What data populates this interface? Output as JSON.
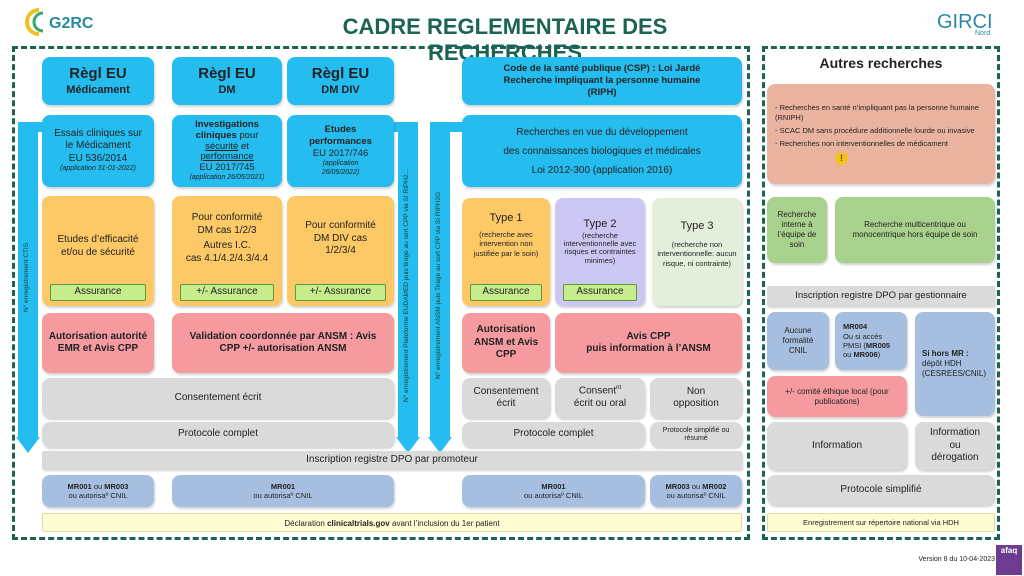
{
  "title": "CADRE REGLEMENTAIRE DES RECHERCHES",
  "logos": {
    "left": "G2RC",
    "right": "GIRCI Nord Ouest",
    "bottom": "afaq"
  },
  "arrows": {
    "ctis": "N° enregistrement CTIS",
    "eudamed": "N° enregistrement Plateforme EUDAMED puis tirage au sort CPP via SI RIPH2…",
    "ansm": "N° enregistrement ANSM puis Tirage au sort CPP via SI RIPH2G"
  },
  "headers": [
    {
      "title": "Règl EU",
      "sub": "Médicament"
    },
    {
      "title": "Règl EU",
      "sub": "DM"
    },
    {
      "title": "Règl EU",
      "sub": "DM DIV"
    },
    {
      "line1": "Code de la santé publique (CSP) : Loi Jardé",
      "line2": "Recherche impliquant la personne humaine",
      "line3": "(RIPH)"
    }
  ],
  "scope": {
    "med": {
      "l1": "Essais cliniques sur",
      "l2": "le Médicament",
      "l3": "EU 536/2014",
      "app": "(application 31-01-2022)"
    },
    "dm": {
      "b1": "Investigations",
      "b2": "cliniques",
      "t2": " pour",
      "u1": "sécurité",
      "t3": " et",
      "u2": "performance",
      "l4": "EU 2017/745",
      "app": "(application 26/05/2021)"
    },
    "div": {
      "b1": "Etudes",
      "b2": "performances",
      "l3": "EU 2017/746",
      "app": "(application 26/05/2022)"
    },
    "riph": {
      "l1": "Recherches en vue du développement",
      "l2": "des connaissances biologiques et médicales",
      "l3": "Loi 2012-300 (application 2016)"
    }
  },
  "types": {
    "med": {
      "text": "Etudes d’efficacité et/ou de sécurité",
      "ins": "Assurance"
    },
    "dm": {
      "l1": "Pour conformité",
      "l2": "DM cas 1/2/3",
      "l3": "Autres I.C.",
      "l4": "cas 4.1/4.2/4.3/4.4",
      "ins": "+/- Assurance"
    },
    "div": {
      "l1": "Pour conformité",
      "l2": "DM DIV cas",
      "l3": "1/2/3/4",
      "ins": "+/- Assurance"
    },
    "t1": {
      "title": "Type 1",
      "desc": "(recherche avec intervention non justifiée par le soin)",
      "ins": "Assurance"
    },
    "t2": {
      "title": "Type 2",
      "desc": "(recherche interventionnelle avec risques et contraintes minimes)",
      "ins": "Assurance"
    },
    "t3": {
      "title": "Type 3",
      "desc": "(recherche non interventionnelle: aucun risque, ni contrainte)"
    }
  },
  "auth": {
    "emr": "Autorisation autorité EMR et Avis CPP",
    "coord": "Validation coordonnée par ANSM : Avis CPP +/- autorisation ANSM",
    "ansm": "Autorisation ANSM et Avis CPP",
    "cpp1": "Avis CPP",
    "cpp2": "puis information à l’ANSM"
  },
  "consent": {
    "left": "Consentement écrit",
    "c1": "Consentement écrit",
    "c2a": "Consent",
    "c2sup": "nt",
    "c2b": "écrit ou oral",
    "c3": "Non opposition"
  },
  "protocol": {
    "left": "Protocole complet",
    "right": "Protocole complet",
    "simple": "Protocole simplifié ou résumé"
  },
  "dpo": "Inscription registre DPO par promoteur",
  "mr": {
    "a": {
      "b1": "MR001",
      "t": " ou ",
      "b2": "MR003",
      "l2": "ou autorisaº CNIL"
    },
    "b": {
      "b1": "MR001",
      "l2": "ou autorisaº CNIL"
    },
    "c": {
      "b1": "MR001",
      "l2": "ou autorisaº CNIL"
    },
    "d": {
      "b1": "MR003",
      "t": " ou ",
      "b2": "MR002",
      "l2": "ou autorisaº CNIL"
    }
  },
  "declaration": {
    "pre": "Déclaration ",
    "bold": "clinicaltrials.gov",
    "post": "  avant l’inclusion du 1er patient"
  },
  "other": {
    "title": "Autres recherches",
    "items": [
      "- Recherches en santé n’impliquant pas la personne humaine (RNIPH)",
      "- SCAC DM sans procédure additionnelle lourde ou invasive",
      "- Recherches non interventionnelles de médicament"
    ],
    "warning_icon": "warning-icon",
    "interne": "Recherche interne à l’équipe de soin",
    "multi": "Recherche multicentrique ou monocentrique hors équipe de soin",
    "dpo": "Inscription registre DPO par gestionnaire",
    "aucune": "Aucune formalité CNIL",
    "mr004": {
      "b1": "MR004",
      "l2": "Ou si accès",
      "l3": "PMSI (",
      "b2": "MR005",
      "l4": "ou ",
      "b3": "MR006",
      "l4e": ")"
    },
    "hdh": {
      "b": "Si hors MR :",
      "l2": "dépôt HDH",
      "l3": "(CESREES/CNIL)"
    },
    "ethique": "+/- comité éthique local (pour publications)",
    "info": "Information",
    "info2": "Information ou dérogation",
    "proto": "Protocole simplifié",
    "enreg": "Enregistrement  sur répertoire national via HDH"
  },
  "version": "Version 8 du 10-04-2023",
  "colors": {
    "cyan": "#25bdf0",
    "orange": "#fdc866",
    "red": "#f59ba0",
    "grey": "#dadada",
    "blue": "#a6bfe0",
    "green": "#a9d18e",
    "title": "#1b6454"
  }
}
